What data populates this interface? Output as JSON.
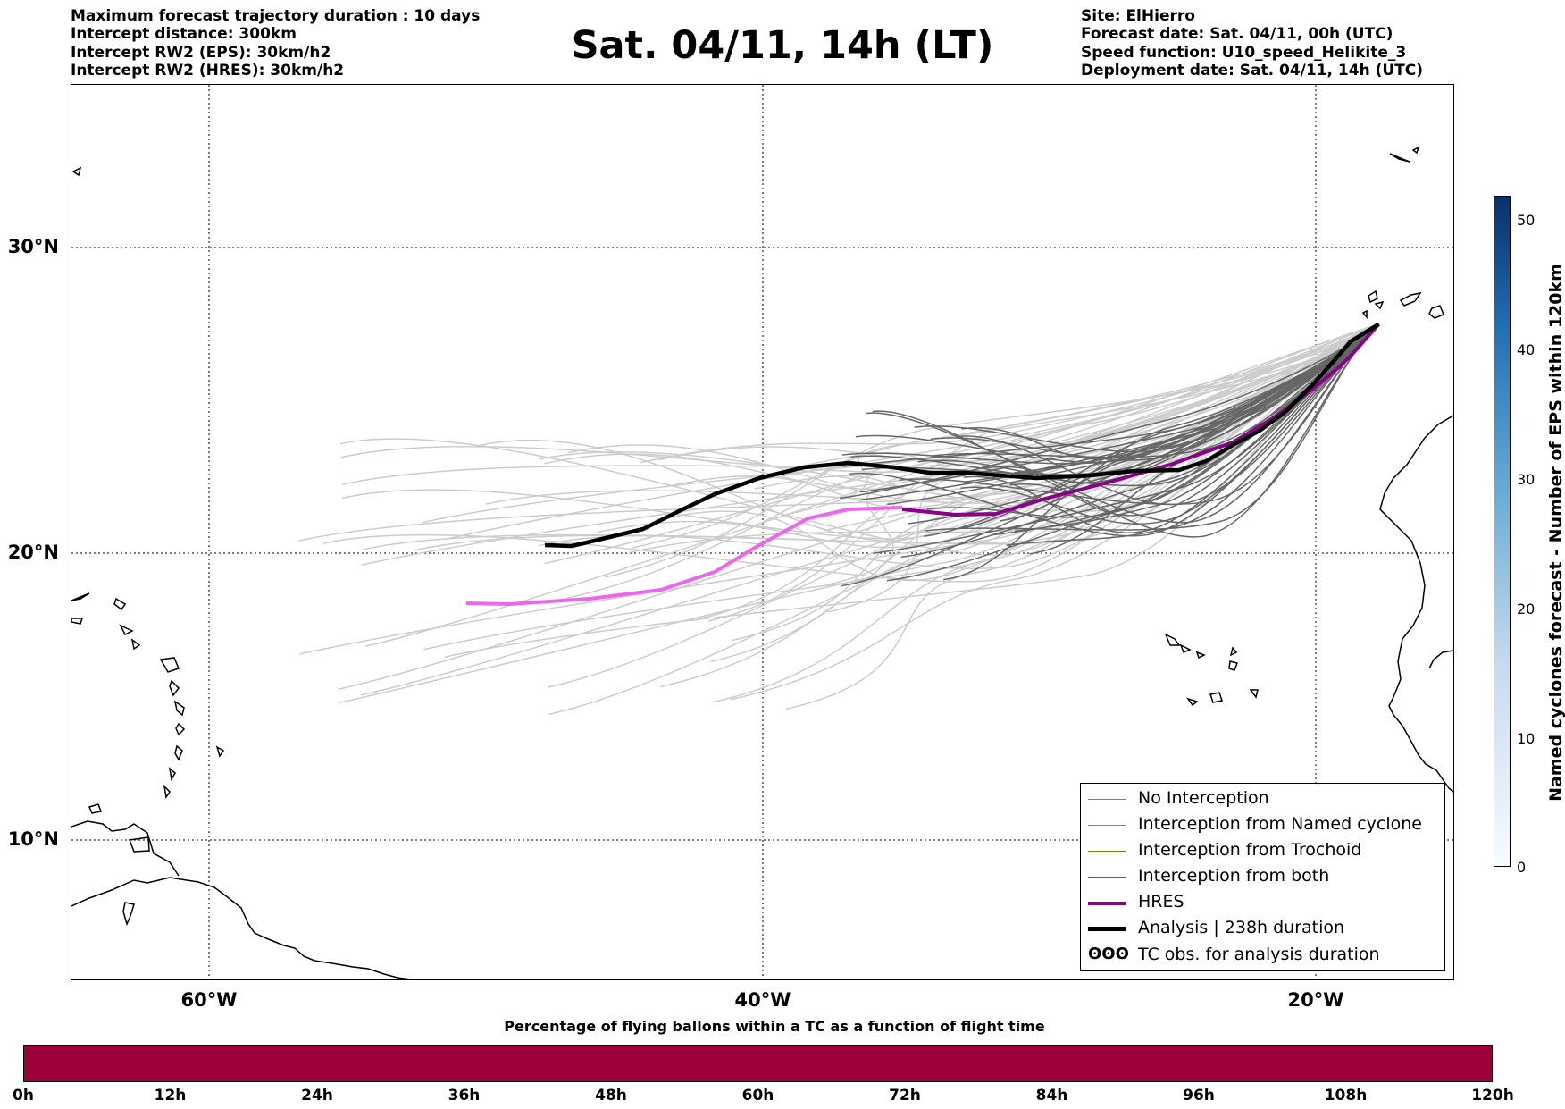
{
  "header_left": [
    "Maximum forecast trajectory duration : 10 days",
    "Intercept distance: 300km",
    "Intercept RW2 (EPS):  30km/h2",
    "Intercept RW2 (HRES): 30km/h2"
  ],
  "title": "Sat. 04/11, 14h (LT)",
  "header_right": [
    "Site: ElHierro",
    "Forecast date: Sat. 04/11, 00h (UTC)",
    "Speed function: U10_speed_Helikite_3",
    "Deployment date: Sat. 04/11, 14h (UTC)"
  ],
  "map": {
    "lat_labels": [
      "30°N",
      "20°N",
      "10°N"
    ],
    "lon_labels": [
      "60°W",
      "40°W",
      "20°W"
    ],
    "extent": {
      "lon_min": -65,
      "lon_max": -15,
      "lat_min": 5.4,
      "lat_max": 35.3
    },
    "launch_site": {
      "lon": -17.7,
      "lat": 27.3
    },
    "colors": {
      "eps_light": "#cccccc",
      "eps_dark": "#666666",
      "hres": "#8b008b",
      "hres_light": "#ee66ee",
      "analysis": "#000000",
      "coast": "#000000"
    }
  },
  "legend": {
    "items": [
      {
        "label": "No Interception",
        "color": "#7f7f7f"
      },
      {
        "label": "Interception from Named cyclone",
        "color": "#ff5722"
      },
      {
        "label": "Interception from Trochoid",
        "color": "#808000"
      },
      {
        "label": "Interception from both",
        "color": "#228b22"
      },
      {
        "label": "HRES",
        "color": "#8b008b"
      },
      {
        "label": "Analysis | 238h duration",
        "color": "#000000"
      },
      {
        "label": "TC obs. for analysis duration",
        "symbol": "ʘʘʘ"
      }
    ]
  },
  "colorbar_vertical": {
    "label": "Named cyclones forecast - Number of EPS within 120km",
    "ticks": [
      "0",
      "10",
      "20",
      "30",
      "40",
      "50"
    ]
  },
  "colorbar_horizontal": {
    "title": "Percentage of flying ballons within a TC as a function of flight time",
    "ticks": [
      "0h",
      "12h",
      "24h",
      "36h",
      "48h",
      "60h",
      "72h",
      "84h",
      "96h",
      "108h",
      "120h"
    ],
    "color": "#9e003a"
  }
}
